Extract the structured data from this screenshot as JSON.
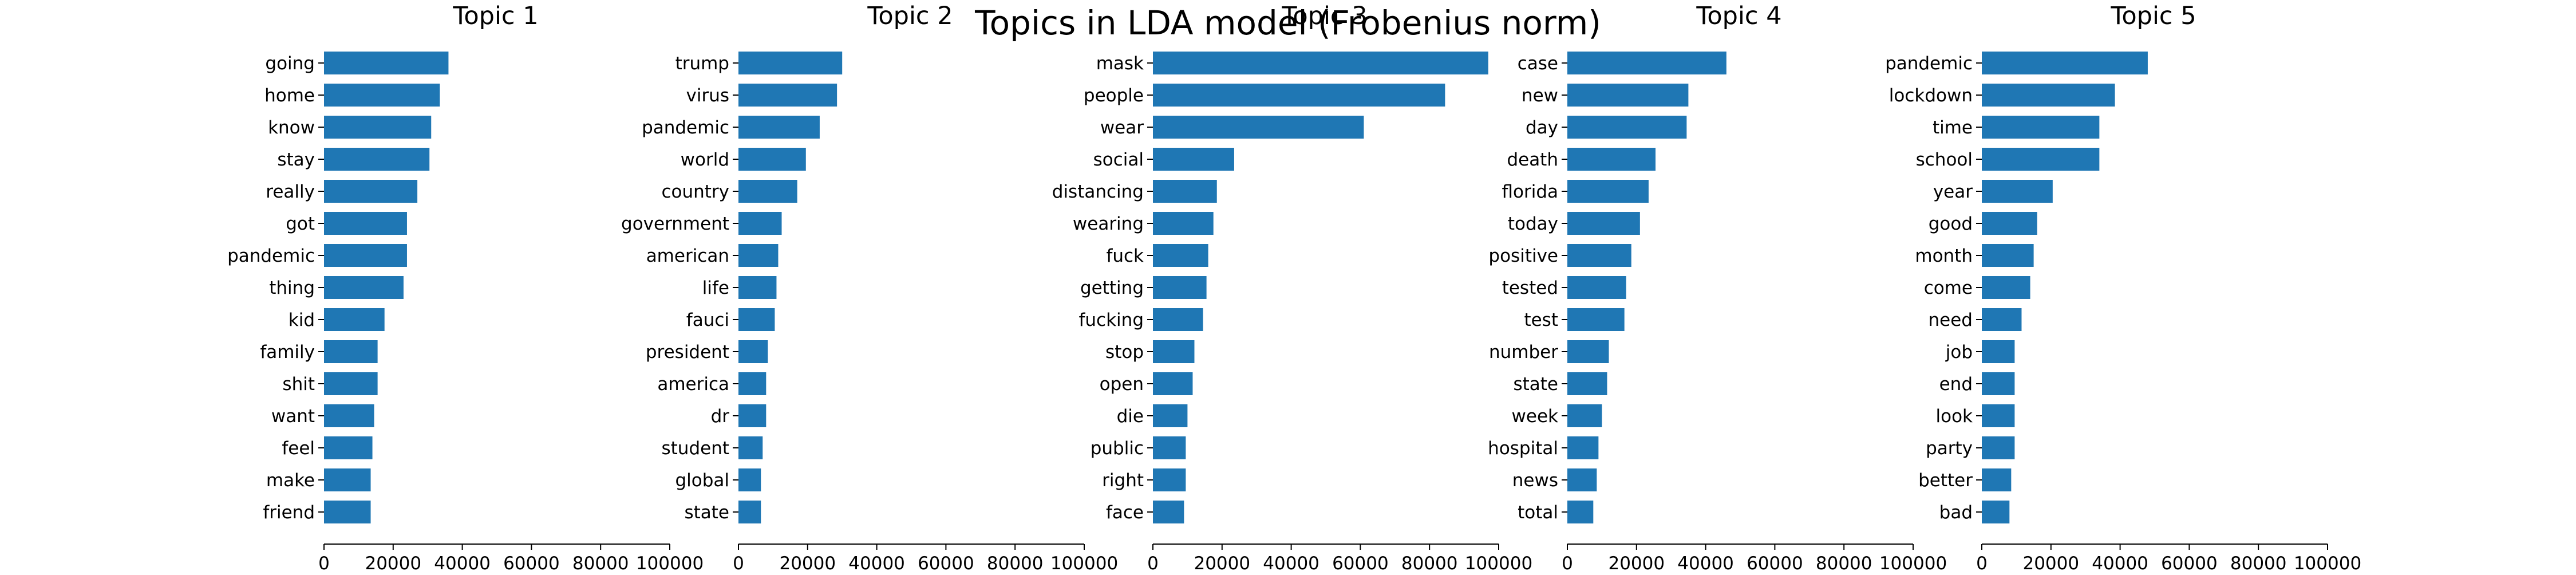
{
  "suptitle": "Topics in LDA model (Frobenius norm)",
  "chart_data": [
    {
      "type": "bar",
      "orientation": "horizontal",
      "title": "Topic 1",
      "categories": [
        "going",
        "home",
        "know",
        "stay",
        "really",
        "got",
        "pandemic",
        "thing",
        "kid",
        "family",
        "shit",
        "want",
        "feel",
        "make",
        "friend"
      ],
      "values": [
        36000,
        33500,
        31000,
        30500,
        27000,
        24000,
        24000,
        23000,
        17500,
        15500,
        15500,
        14500,
        14000,
        13500,
        13500
      ],
      "xlim": [
        0,
        100000
      ],
      "xticks": [
        "0",
        "20000",
        "40000",
        "60000",
        "80000",
        "100000"
      ],
      "color": "#1f77b4"
    },
    {
      "type": "bar",
      "orientation": "horizontal",
      "title": "Topic 2",
      "categories": [
        "trump",
        "virus",
        "pandemic",
        "world",
        "country",
        "government",
        "american",
        "life",
        "fauci",
        "president",
        "america",
        "dr",
        "student",
        "global",
        "state"
      ],
      "values": [
        30000,
        28500,
        23500,
        19500,
        17000,
        12500,
        11500,
        11000,
        10500,
        8500,
        8000,
        8000,
        7000,
        6500,
        6500
      ],
      "xlim": [
        0,
        100000
      ],
      "xticks": [
        "0",
        "20000",
        "40000",
        "60000",
        "80000",
        "100000"
      ],
      "color": "#1f77b4"
    },
    {
      "type": "bar",
      "orientation": "horizontal",
      "title": "Topic 3",
      "categories": [
        "mask",
        "people",
        "wear",
        "social",
        "distancing",
        "wearing",
        "fuck",
        "getting",
        "fucking",
        "stop",
        "open",
        "die",
        "public",
        "right",
        "face"
      ],
      "values": [
        97000,
        84500,
        61000,
        23500,
        18500,
        17500,
        16000,
        15500,
        14500,
        12000,
        11500,
        10000,
        9500,
        9500,
        9000
      ],
      "xlim": [
        0,
        100000
      ],
      "xticks": [
        "0",
        "20000",
        "40000",
        "60000",
        "80000",
        "100000"
      ],
      "color": "#1f77b4"
    },
    {
      "type": "bar",
      "orientation": "horizontal",
      "title": "Topic 4",
      "categories": [
        "case",
        "new",
        "day",
        "death",
        "florida",
        "today",
        "positive",
        "tested",
        "test",
        "number",
        "state",
        "week",
        "hospital",
        "news",
        "total"
      ],
      "values": [
        46000,
        35000,
        34500,
        25500,
        23500,
        21000,
        18500,
        17000,
        16500,
        12000,
        11500,
        10000,
        9000,
        8500,
        7500
      ],
      "xlim": [
        0,
        100000
      ],
      "xticks": [
        "0",
        "20000",
        "40000",
        "60000",
        "80000",
        "100000"
      ],
      "color": "#1f77b4"
    },
    {
      "type": "bar",
      "orientation": "horizontal",
      "title": "Topic 5",
      "categories": [
        "pandemic",
        "lockdown",
        "time",
        "school",
        "year",
        "good",
        "month",
        "come",
        "need",
        "job",
        "end",
        "look",
        "party",
        "better",
        "bad"
      ],
      "values": [
        48000,
        38500,
        34000,
        34000,
        20500,
        16000,
        15000,
        14000,
        11500,
        9500,
        9500,
        9500,
        9500,
        8500,
        8000
      ],
      "xlim": [
        0,
        100000
      ],
      "xticks": [
        "0",
        "20000",
        "40000",
        "60000",
        "80000",
        "100000"
      ],
      "color": "#1f77b4"
    }
  ]
}
